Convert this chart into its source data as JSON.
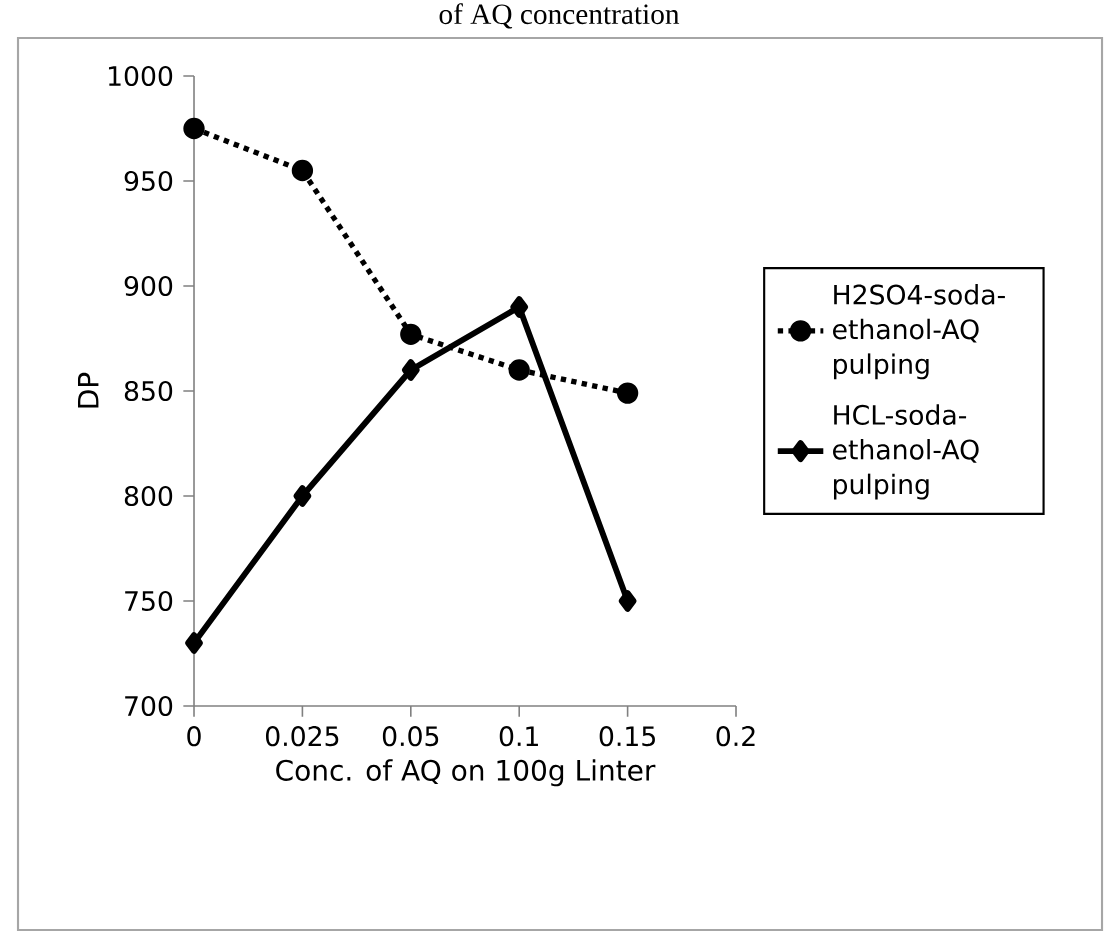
{
  "chart_data": {
    "type": "line",
    "title": "of AQ concentration",
    "xlabel": "Conc. of AQ on 100g Linter",
    "ylabel": "DP",
    "categories": [
      "0",
      "0.025",
      "0.05",
      "0.1",
      "0.15",
      "0.2"
    ],
    "series": [
      {
        "name": "H2SO4-soda-ethanol-AQ pulping",
        "color": "#000000",
        "marker": "circle",
        "line_style": "dotted",
        "values": [
          975,
          955,
          877,
          860,
          849,
          null
        ]
      },
      {
        "name": "HCL-soda-ethanol-AQ pulping",
        "color": "#000000",
        "marker": "diamond",
        "line_style": "solid",
        "values": [
          730,
          800,
          860,
          890,
          750,
          null
        ]
      }
    ],
    "ylim": [
      700,
      1000
    ],
    "yticks": [
      700,
      750,
      800,
      850,
      900,
      950,
      1000
    ],
    "legend": "right"
  }
}
